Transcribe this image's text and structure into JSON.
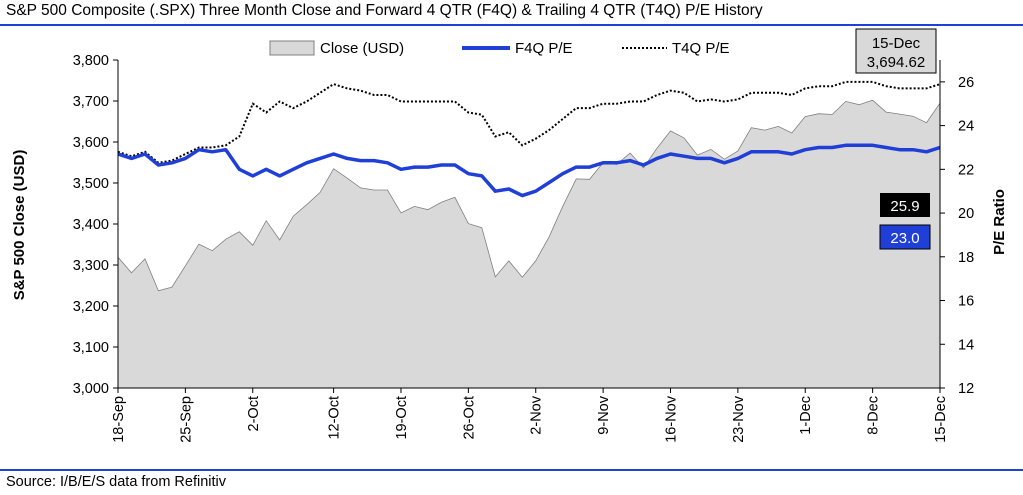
{
  "header": {
    "title": "S&P 500 Composite (.SPX) Three Month Close and Forward 4 QTR (F4Q) & Trailing 4 QTR (T4Q) P/E History"
  },
  "footer": {
    "source": "Source: I/B/E/S data from Refinitiv"
  },
  "colors": {
    "rule": "#1f3fd6",
    "close_fill": "#d9d9d9",
    "f4q": "#1f3fd6",
    "t4q": "#000000",
    "badge_t4q": "#000000",
    "badge_f4q": "#1f3fd6"
  },
  "chart_data": {
    "type": "area",
    "title": "S&P 500 Composite (.SPX) Three Month Close and Forward 4 QTR (F4Q) & Trailing 4 QTR (T4Q) P/E History",
    "ylabel_left": "S&P 500 Close (USD)",
    "ylabel_right": "P/E Ratio",
    "ylim_left": [
      3000,
      3800
    ],
    "ylim_right": [
      12,
      27
    ],
    "y_ticks_left": [
      "3,000",
      "3,100",
      "3,200",
      "3,300",
      "3,400",
      "3,500",
      "3,600",
      "3,700",
      "3,800"
    ],
    "y_ticks_left_values": [
      3000,
      3100,
      3200,
      3300,
      3400,
      3500,
      3600,
      3700,
      3800
    ],
    "y_ticks_right": [
      "12",
      "14",
      "16",
      "18",
      "20",
      "22",
      "24",
      "26"
    ],
    "y_ticks_right_values": [
      12,
      14,
      16,
      18,
      20,
      22,
      24,
      26
    ],
    "x_ticks": [
      "18-Sep",
      "25-Sep",
      "2-Oct",
      "12-Oct",
      "19-Oct",
      "26-Oct",
      "2-Nov",
      "9-Nov",
      "16-Nov",
      "23-Nov",
      "1-Dec",
      "8-Dec",
      "15-Dec"
    ],
    "x_tick_index": [
      0,
      5,
      10,
      16,
      21,
      26,
      31,
      36,
      41,
      46,
      51,
      56,
      61
    ],
    "dates": [
      "18-Sep",
      "21-Sep",
      "22-Sep",
      "23-Sep",
      "24-Sep",
      "25-Sep",
      "28-Sep",
      "29-Sep",
      "30-Sep",
      "1-Oct",
      "2-Oct",
      "5-Oct",
      "6-Oct",
      "7-Oct",
      "8-Oct",
      "9-Oct",
      "12-Oct",
      "13-Oct",
      "14-Oct",
      "15-Oct",
      "16-Oct",
      "19-Oct",
      "20-Oct",
      "21-Oct",
      "22-Oct",
      "23-Oct",
      "26-Oct",
      "27-Oct",
      "28-Oct",
      "29-Oct",
      "30-Oct",
      "2-Nov",
      "3-Nov",
      "4-Nov",
      "5-Nov",
      "6-Nov",
      "9-Nov",
      "10-Nov",
      "11-Nov",
      "12-Nov",
      "13-Nov",
      "16-Nov",
      "17-Nov",
      "18-Nov",
      "19-Nov",
      "20-Nov",
      "23-Nov",
      "24-Nov",
      "25-Nov",
      "27-Nov",
      "30-Nov",
      "1-Dec",
      "2-Dec",
      "3-Dec",
      "4-Dec",
      "7-Dec",
      "8-Dec",
      "9-Dec",
      "10-Dec",
      "11-Dec",
      "14-Dec",
      "15-Dec"
    ],
    "legend": [
      "Close (USD)",
      "F4Q P/E",
      "T4Q P/E"
    ],
    "legend_position": "top",
    "series": [
      {
        "name": "Close (USD)",
        "axis": "left",
        "style": "area",
        "values": [
          3319,
          3281,
          3315,
          3237,
          3246,
          3298,
          3351,
          3335,
          3363,
          3381,
          3348,
          3408,
          3361,
          3419,
          3447,
          3477,
          3535,
          3512,
          3488,
          3483,
          3483,
          3427,
          3443,
          3435,
          3453,
          3465,
          3401,
          3391,
          3271,
          3310,
          3270,
          3310,
          3369,
          3443,
          3510,
          3509,
          3550,
          3545,
          3573,
          3537,
          3585,
          3627,
          3610,
          3568,
          3582,
          3558,
          3578,
          3635,
          3629,
          3638,
          3622,
          3662,
          3669,
          3667,
          3699,
          3691,
          3702,
          3673,
          3668,
          3663,
          3647,
          3695
        ]
      },
      {
        "name": "F4Q P/E",
        "axis": "right",
        "style": "solid",
        "values": [
          22.7,
          22.5,
          22.7,
          22.2,
          22.3,
          22.5,
          22.9,
          22.8,
          22.9,
          22.0,
          21.7,
          22.0,
          21.7,
          22.0,
          22.3,
          22.5,
          22.7,
          22.5,
          22.4,
          22.4,
          22.3,
          22.0,
          22.1,
          22.1,
          22.2,
          22.2,
          21.8,
          21.7,
          21.0,
          21.1,
          20.8,
          21.0,
          21.4,
          21.8,
          22.1,
          22.1,
          22.3,
          22.3,
          22.4,
          22.2,
          22.5,
          22.7,
          22.6,
          22.5,
          22.5,
          22.3,
          22.5,
          22.8,
          22.8,
          22.8,
          22.7,
          22.9,
          23.0,
          23.0,
          23.1,
          23.1,
          23.1,
          23.0,
          22.9,
          22.9,
          22.8,
          23.0
        ]
      },
      {
        "name": "T4Q P/E",
        "axis": "right",
        "style": "dotted",
        "values": [
          22.8,
          22.6,
          22.8,
          22.3,
          22.4,
          22.7,
          23.0,
          23.0,
          23.1,
          23.5,
          25.0,
          24.6,
          25.1,
          24.8,
          25.1,
          25.5,
          25.9,
          25.7,
          25.6,
          25.4,
          25.4,
          25.1,
          25.1,
          25.1,
          25.1,
          25.1,
          24.6,
          24.5,
          23.5,
          23.7,
          23.1,
          23.4,
          23.8,
          24.3,
          24.8,
          24.8,
          25.0,
          25.0,
          25.1,
          25.1,
          25.4,
          25.6,
          25.5,
          25.1,
          25.2,
          25.1,
          25.2,
          25.5,
          25.5,
          25.5,
          25.4,
          25.7,
          25.8,
          25.8,
          26.0,
          26.0,
          26.0,
          25.8,
          25.7,
          25.7,
          25.7,
          25.9
        ]
      }
    ],
    "callout": {
      "date": "15-Dec",
      "value": "3,694.62"
    },
    "end_labels": {
      "t4q": "25.9",
      "f4q": "23.0"
    },
    "grid": false
  }
}
